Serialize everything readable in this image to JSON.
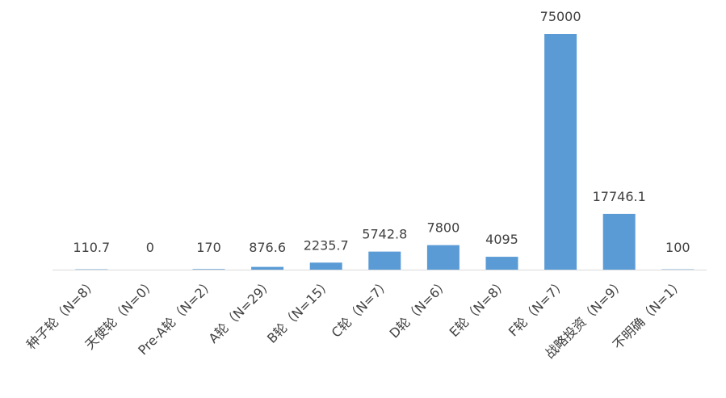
{
  "chart_data": {
    "type": "bar",
    "categories": [
      "种子轮（N=8）",
      "天使轮（N=0）",
      "Pre-A轮（N=2）",
      "A轮（N=29）",
      "B轮（N=15）",
      "C轮（N=7）",
      "D轮（N=6）",
      "E轮（N=8）",
      "F轮（N=7）",
      "战略投资（N=9）",
      "不明确（N=1）"
    ],
    "values": [
      110.7,
      0,
      170,
      876.6,
      2235.7,
      5742.8,
      7800,
      4095,
      75000,
      17746.1,
      100
    ],
    "color": "#5b9bd5"
  }
}
